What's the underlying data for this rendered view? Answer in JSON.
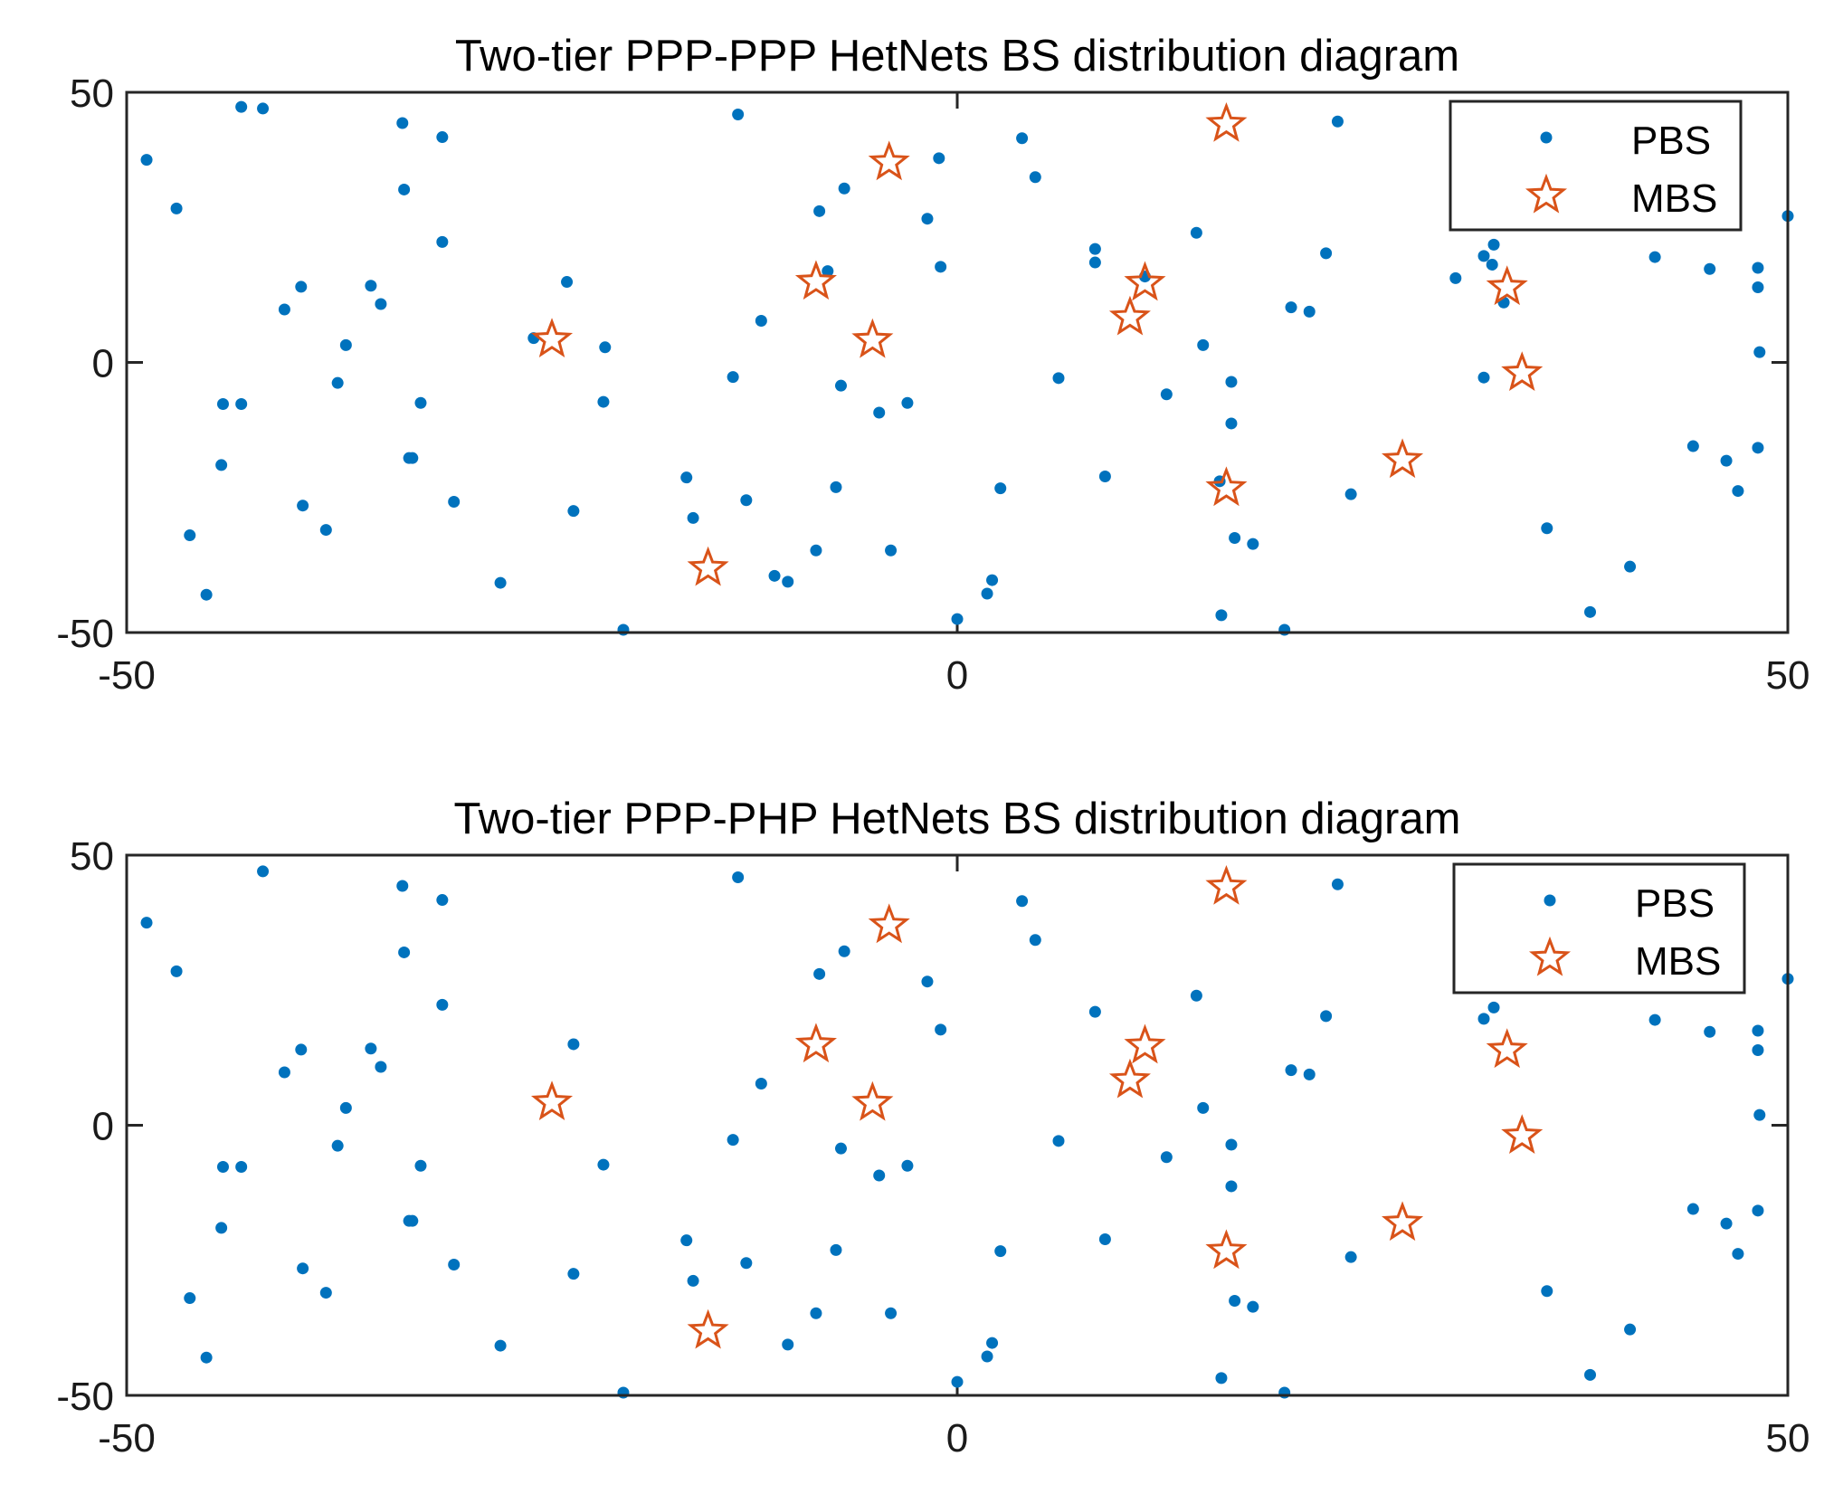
{
  "colors": {
    "pbs": "#0072BD",
    "mbs": "#D95319",
    "axis": "#262626",
    "text": "#1a1a1a"
  },
  "chart_data": [
    {
      "type": "scatter",
      "title": "Two-tier PPP-PPP HetNets BS distribution diagram",
      "xlim": [
        -50,
        50
      ],
      "ylim": [
        -50,
        50
      ],
      "xticks": [
        "-50",
        "0",
        "50"
      ],
      "yticks": [
        "50",
        "0",
        "-50"
      ],
      "legend": [
        "PBS",
        "MBS"
      ],
      "legend_position": "top-right",
      "series": [
        {
          "name": "PBS",
          "marker": "dot",
          "points": [
            [
              -48.8,
              37.5
            ],
            [
              -47,
              28.5
            ],
            [
              -41.8,
              47
            ],
            [
              -43.1,
              47.3
            ],
            [
              -46.2,
              -32
            ],
            [
              -45.2,
              -43
            ],
            [
              -44.3,
              -19
            ],
            [
              -44.2,
              -7.7
            ],
            [
              -43.1,
              -7.7
            ],
            [
              -40.5,
              9.8
            ],
            [
              -39.5,
              14
            ],
            [
              -39.4,
              -26.5
            ],
            [
              -38,
              -31
            ],
            [
              -37.3,
              -3.8
            ],
            [
              -36.8,
              3.2
            ],
            [
              -35.3,
              14.2
            ],
            [
              -34.7,
              10.8
            ],
            [
              -33.4,
              44.3
            ],
            [
              -33.3,
              32
            ],
            [
              -33,
              -17.7
            ],
            [
              -32.8,
              -17.7
            ],
            [
              -32.3,
              -7.5
            ],
            [
              -31,
              41.7
            ],
            [
              -31,
              22.3
            ],
            [
              -30.3,
              -25.8
            ],
            [
              -27.5,
              -40.8
            ],
            [
              -25.5,
              4.5
            ],
            [
              -23.5,
              14.9
            ],
            [
              -23.1,
              -27.5
            ],
            [
              -21.2,
              2.8
            ],
            [
              -21.3,
              -7.3
            ],
            [
              -20.1,
              -49.5
            ],
            [
              -16.3,
              -21.3
            ],
            [
              -15.9,
              -28.8
            ],
            [
              -13.2,
              45.9
            ],
            [
              -13.5,
              -2.7
            ],
            [
              -12.7,
              -25.5
            ],
            [
              -11.8,
              7.7
            ],
            [
              -11,
              -39.5
            ],
            [
              -10.2,
              -40.6
            ],
            [
              -8.5,
              -34.8
            ],
            [
              -8.3,
              28
            ],
            [
              -7.8,
              16.9
            ],
            [
              -7.3,
              -23.1
            ],
            [
              -7,
              -4.3
            ],
            [
              -6.8,
              32.2
            ],
            [
              -4.7,
              -9.3
            ],
            [
              -4,
              -34.8
            ],
            [
              -3,
              -7.5
            ],
            [
              -1.8,
              26.6
            ],
            [
              -1.1,
              37.8
            ],
            [
              -1,
              17.7
            ],
            [
              0,
              -47.5
            ],
            [
              1.8,
              -42.8
            ],
            [
              2.1,
              -40.3
            ],
            [
              2.6,
              -23.3
            ],
            [
              3.9,
              41.5
            ],
            [
              4.7,
              34.3
            ],
            [
              6.1,
              -2.9
            ],
            [
              8.3,
              18.5
            ],
            [
              8.3,
              21
            ],
            [
              8.9,
              -21.1
            ],
            [
              11.3,
              15.9
            ],
            [
              12.6,
              -5.9
            ],
            [
              14.4,
              24
            ],
            [
              14.8,
              3.2
            ],
            [
              15.8,
              -22
            ],
            [
              15.9,
              -46.8
            ],
            [
              16.5,
              -3.6
            ],
            [
              16.5,
              -11.3
            ],
            [
              16.7,
              -32.5
            ],
            [
              17.8,
              -33.6
            ],
            [
              19.7,
              -49.5
            ],
            [
              20.1,
              10.2
            ],
            [
              21.2,
              9.4
            ],
            [
              22.2,
              20.2
            ],
            [
              22.9,
              44.6
            ],
            [
              23.7,
              -24.4
            ],
            [
              30,
              15.6
            ],
            [
              31.7,
              -2.8
            ],
            [
              31.7,
              19.7
            ],
            [
              32.2,
              18.1
            ],
            [
              32.3,
              21.8
            ],
            [
              32.9,
              11.1
            ],
            [
              35.5,
              -30.7
            ],
            [
              38.1,
              -46.2
            ],
            [
              40.5,
              -37.8
            ],
            [
              42,
              19.5
            ],
            [
              44.3,
              -15.5
            ],
            [
              45.3,
              17.3
            ],
            [
              46.3,
              -18.2
            ],
            [
              47,
              -23.8
            ],
            [
              48.2,
              17.5
            ],
            [
              48.2,
              13.9
            ],
            [
              48.3,
              1.9
            ],
            [
              48.2,
              -15.8
            ],
            [
              50,
              27.1
            ]
          ]
        },
        {
          "name": "MBS",
          "marker": "star",
          "points": [
            [
              -24.4,
              4.2
            ],
            [
              -15,
              -38.1
            ],
            [
              -8.5,
              14.9
            ],
            [
              -5.1,
              4.1
            ],
            [
              -4.1,
              37
            ],
            [
              10.4,
              8.3
            ],
            [
              11.3,
              14.7
            ],
            [
              16.2,
              44.1
            ],
            [
              16.2,
              -23.3
            ],
            [
              26.8,
              -18.1
            ],
            [
              33.1,
              13.9
            ],
            [
              34,
              -2
            ]
          ]
        }
      ]
    },
    {
      "type": "scatter",
      "title": "Two-tier PPP-PHP HetNets BS distribution diagram",
      "xlim": [
        -50,
        50
      ],
      "ylim": [
        -50,
        50
      ],
      "xticks": [
        "-50",
        "0",
        "50"
      ],
      "yticks": [
        "50",
        "0",
        "-50"
      ],
      "legend": [
        "PBS",
        "MBS"
      ],
      "legend_position": "top-right",
      "series": [
        {
          "name": "PBS",
          "marker": "dot",
          "points": [
            [
              -48.8,
              37.5
            ],
            [
              -47,
              28.5
            ],
            [
              -41.8,
              47
            ],
            [
              -46.2,
              -32
            ],
            [
              -45.2,
              -43
            ],
            [
              -44.3,
              -19
            ],
            [
              -44.2,
              -7.7
            ],
            [
              -43.1,
              -7.7
            ],
            [
              -40.5,
              9.8
            ],
            [
              -39.5,
              14
            ],
            [
              -39.4,
              -26.5
            ],
            [
              -38,
              -31
            ],
            [
              -37.3,
              -3.8
            ],
            [
              -36.8,
              3.2
            ],
            [
              -35.3,
              14.2
            ],
            [
              -34.7,
              10.8
            ],
            [
              -33.4,
              44.3
            ],
            [
              -33.3,
              32
            ],
            [
              -33,
              -17.7
            ],
            [
              -32.8,
              -17.7
            ],
            [
              -32.3,
              -7.5
            ],
            [
              -31,
              41.7
            ],
            [
              -31,
              22.3
            ],
            [
              -30.3,
              -25.8
            ],
            [
              -27.5,
              -40.8
            ],
            [
              -23.1,
              15
            ],
            [
              -23.1,
              -27.5
            ],
            [
              -21.3,
              -7.3
            ],
            [
              -20.1,
              -49.5
            ],
            [
              -16.3,
              -21.3
            ],
            [
              -15.9,
              -28.8
            ],
            [
              -13.2,
              45.9
            ],
            [
              -13.5,
              -2.7
            ],
            [
              -12.7,
              -25.5
            ],
            [
              -11.8,
              7.7
            ],
            [
              -10.2,
              -40.6
            ],
            [
              -8.5,
              -34.8
            ],
            [
              -8.3,
              28
            ],
            [
              -7.3,
              -23.1
            ],
            [
              -7,
              -4.3
            ],
            [
              -6.8,
              32.2
            ],
            [
              -4.7,
              -9.3
            ],
            [
              -4,
              -34.8
            ],
            [
              -3,
              -7.5
            ],
            [
              -1.8,
              26.6
            ],
            [
              -1,
              17.7
            ],
            [
              0,
              -47.5
            ],
            [
              1.8,
              -42.8
            ],
            [
              2.1,
              -40.3
            ],
            [
              2.6,
              -23.3
            ],
            [
              3.9,
              41.5
            ],
            [
              4.7,
              34.3
            ],
            [
              6.1,
              -2.9
            ],
            [
              8.3,
              21
            ],
            [
              8.9,
              -21.1
            ],
            [
              12.6,
              -5.9
            ],
            [
              14.4,
              24
            ],
            [
              14.8,
              3.2
            ],
            [
              15.9,
              -46.8
            ],
            [
              16.5,
              -3.6
            ],
            [
              16.5,
              -11.3
            ],
            [
              16.7,
              -32.5
            ],
            [
              17.8,
              -33.6
            ],
            [
              19.7,
              -49.5
            ],
            [
              20.1,
              10.2
            ],
            [
              21.2,
              9.4
            ],
            [
              22.2,
              20.2
            ],
            [
              22.9,
              44.6
            ],
            [
              23.7,
              -24.4
            ],
            [
              31.7,
              19.7
            ],
            [
              32.3,
              21.8
            ],
            [
              35.5,
              -30.7
            ],
            [
              38.1,
              -46.2
            ],
            [
              40.5,
              -37.8
            ],
            [
              42,
              19.5
            ],
            [
              44.3,
              -15.5
            ],
            [
              45.3,
              17.3
            ],
            [
              46.3,
              -18.2
            ],
            [
              47,
              -23.8
            ],
            [
              48.2,
              17.5
            ],
            [
              48.2,
              13.9
            ],
            [
              48.3,
              1.9
            ],
            [
              48.2,
              -15.8
            ],
            [
              50,
              27.1
            ]
          ]
        },
        {
          "name": "MBS",
          "marker": "star",
          "points": [
            [
              -24.4,
              4.2
            ],
            [
              -15,
              -38.1
            ],
            [
              -8.5,
              14.9
            ],
            [
              -5.1,
              4.1
            ],
            [
              -4.1,
              37
            ],
            [
              10.4,
              8.3
            ],
            [
              11.3,
              14.7
            ],
            [
              16.2,
              44.1
            ],
            [
              16.2,
              -23.3
            ],
            [
              26.8,
              -18.1
            ],
            [
              33.1,
              13.9
            ],
            [
              34,
              -2
            ]
          ]
        }
      ]
    }
  ]
}
